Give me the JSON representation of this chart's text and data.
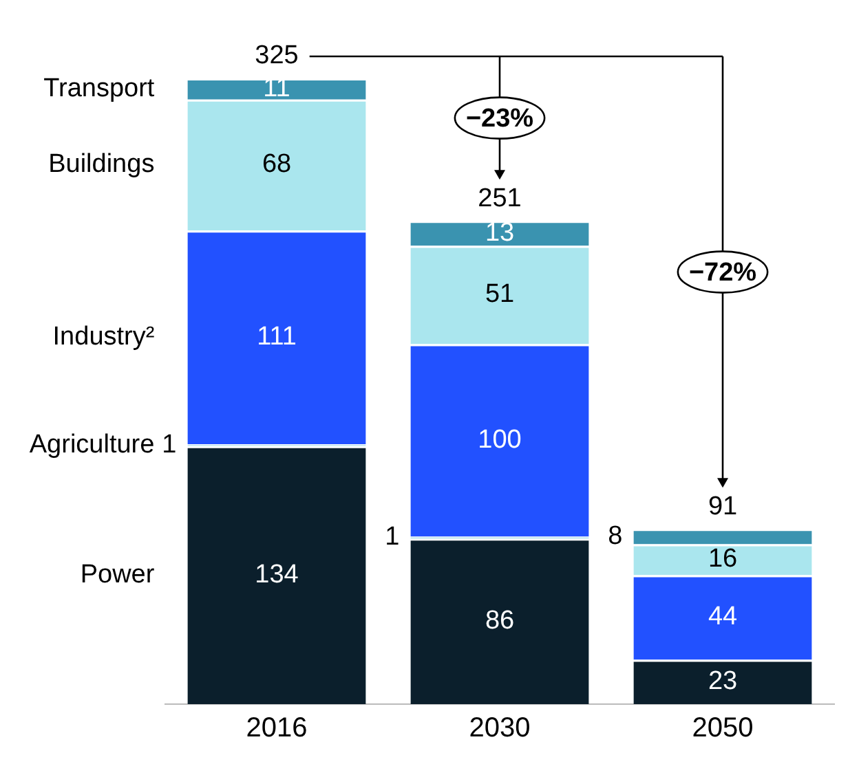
{
  "chart_data": {
    "type": "bar",
    "stacked": true,
    "categories": [
      "2016",
      "2030",
      "2050"
    ],
    "series": [
      {
        "name": "Power",
        "color": "#0b1f2c",
        "values": [
          134,
          86,
          23
        ]
      },
      {
        "name": "Agriculture",
        "color": "#9fd9e6",
        "values": [
          1,
          1,
          null
        ]
      },
      {
        "name": "Industry²",
        "color": "#2251ff",
        "values": [
          111,
          100,
          44
        ]
      },
      {
        "name": "Buildings",
        "color": "#aae6ee",
        "values": [
          68,
          51,
          16
        ]
      },
      {
        "name": "Transport",
        "color": "#3a93b0",
        "values": [
          11,
          13,
          8
        ]
      }
    ],
    "totals": [
      "325",
      "251",
      "91"
    ],
    "annotations": [
      "−23%",
      "−72%"
    ],
    "data_labels": true,
    "legend": "left",
    "grid": false,
    "tick_labels": "x"
  }
}
